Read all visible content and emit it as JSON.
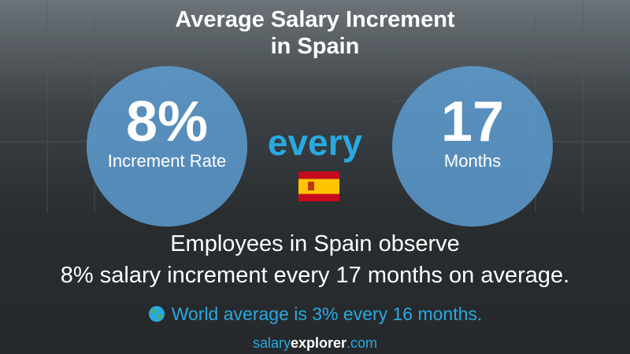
{
  "header": {
    "title_lines": [
      "Average Salary Increment",
      "in Spain"
    ]
  },
  "left_circle": {
    "value": "8%",
    "label": "Increment Rate"
  },
  "middle": {
    "word": "every"
  },
  "right_circle": {
    "value": "17",
    "label": "Months"
  },
  "description": {
    "lines": [
      "Employees in Spain observe",
      "8% salary increment every 17 months on average."
    ]
  },
  "world": {
    "text": "World average is 3% every 16 months."
  },
  "footer": {
    "parts": [
      "salary",
      "explorer",
      ".com"
    ]
  }
}
